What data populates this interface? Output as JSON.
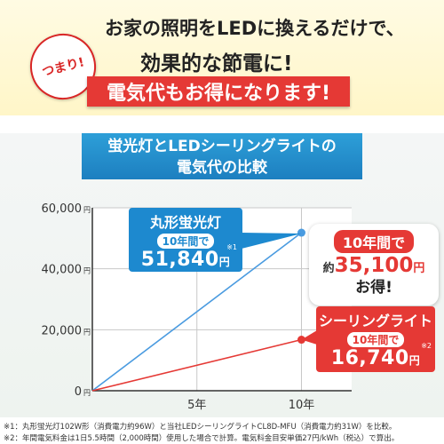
{
  "header": {
    "badge": "つまり!",
    "line1": "お家の照明をLEDに換えるだけで、",
    "line2": "効果的な節電に!",
    "line3": "電気代もお得になります!"
  },
  "chart_data": {
    "type": "line",
    "title_line1": "蛍光灯とLEDシーリングライトの",
    "title_line2": "電気代の比較",
    "y_ticks": [
      "60,000",
      "40,000",
      "20,000",
      "0"
    ],
    "y_tick_values": [
      60000,
      40000,
      20000,
      0
    ],
    "y_unit": "円",
    "x_ticks": [
      "5年",
      "10年"
    ],
    "x_tick_values": [
      5,
      10
    ],
    "xlim": [
      0,
      12.4
    ],
    "ylim": [
      0,
      60000
    ],
    "grid": true,
    "series": [
      {
        "name": "丸形蛍光灯",
        "color": "#4a9be0",
        "x": [
          0,
          10
        ],
        "values": [
          0,
          51840
        ]
      },
      {
        "name": "シーリングライト",
        "color": "#e53935",
        "x": [
          0,
          10
        ],
        "values": [
          0,
          16740
        ]
      }
    ]
  },
  "callouts": {
    "fluorescent": {
      "name": "丸形蛍光灯",
      "years": "10年間で",
      "amount": "51,840",
      "unit": "円",
      "note": "※1"
    },
    "led": {
      "name": "シーリングライト",
      "years": "10年間で",
      "amount": "16,740",
      "unit": "円",
      "note": "※2"
    }
  },
  "savings": {
    "years": "10年間で",
    "prefix": "約",
    "amount": "35,100",
    "unit": "円",
    "suffix": "お得!"
  },
  "footnotes": [
    "※1：丸形蛍光灯102W形（消費電力約96W）と当社LEDシーリングライトCL8D-MFU（消費電力約31W）を比較。",
    "※2：年間電気料金は1日5.5時間（2,000時間）使用した場合で計算。電気料金目安単価27円/kWh（税込）で算出。"
  ],
  "colors": {
    "accent_red": "#e53935",
    "accent_blue": "#1d89cf"
  }
}
